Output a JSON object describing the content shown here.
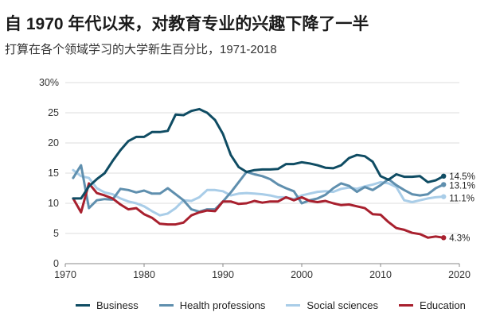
{
  "title": "自 1970 年代以来，对教育专业的兴趣下降了一半",
  "subtitle": "打算在各个领域学习的大学新生百分比，1971-2018",
  "colors": {
    "business": "#0f4c63",
    "health": "#5f8fae",
    "social": "#a9cde8",
    "education": "#a8202e",
    "grid": "#dcdcdc"
  },
  "chart_data": {
    "type": "line",
    "title": "自 1970 年代以来，对教育专业的兴趣下降了一半",
    "subtitle": "打算在各个领域学习的大学新生百分比，1971-2018",
    "xlim": [
      1970,
      2020
    ],
    "ylim": [
      0,
      30
    ],
    "xticks": [
      "1970",
      "1980",
      "1990",
      "2000",
      "2010",
      "2020"
    ],
    "yticks": [
      "0",
      "5",
      "10",
      "15",
      "20",
      "25",
      "30%"
    ],
    "grid": "horizontal",
    "legend_position": "bottom",
    "x": [
      1971,
      1972,
      1973,
      1974,
      1975,
      1976,
      1977,
      1978,
      1979,
      1980,
      1981,
      1982,
      1983,
      1984,
      1985,
      1986,
      1987,
      1988,
      1989,
      1990,
      1991,
      1992,
      1993,
      1994,
      1995,
      1996,
      1997,
      1998,
      1999,
      2000,
      2001,
      2002,
      2003,
      2004,
      2005,
      2006,
      2007,
      2008,
      2009,
      2010,
      2011,
      2012,
      2013,
      2014,
      2015,
      2016,
      2017,
      2018
    ],
    "series": [
      {
        "name": "Business",
        "key": "business",
        "end_label": "14.5%",
        "values": [
          10.8,
          10.8,
          12.8,
          14.0,
          15.0,
          17.0,
          18.8,
          20.3,
          21.0,
          21.0,
          21.8,
          21.8,
          22.0,
          24.7,
          24.6,
          25.3,
          25.6,
          25.0,
          23.8,
          21.5,
          18.0,
          16.0,
          15.2,
          15.5,
          15.6,
          15.6,
          15.7,
          16.5,
          16.5,
          16.8,
          16.6,
          16.3,
          15.9,
          15.8,
          16.3,
          17.5,
          18.0,
          17.8,
          16.9,
          14.5,
          13.9,
          14.8,
          14.4,
          14.4,
          14.5,
          13.5,
          13.8,
          14.5
        ]
      },
      {
        "name": "Health professions",
        "key": "health",
        "end_label": "13.1%",
        "values": [
          14.2,
          16.3,
          9.2,
          10.5,
          10.7,
          10.6,
          12.4,
          12.2,
          11.8,
          12.1,
          11.6,
          11.6,
          12.5,
          11.5,
          10.5,
          9.0,
          8.6,
          9.0,
          9.0,
          10.3,
          11.8,
          13.5,
          15.2,
          14.8,
          14.5,
          14.0,
          13.1,
          12.5,
          12.0,
          10.0,
          10.5,
          10.8,
          11.4,
          12.5,
          13.3,
          12.9,
          11.9,
          12.7,
          12.2,
          13.0,
          14.0,
          13.0,
          12.2,
          11.5,
          11.3,
          11.5,
          12.5,
          13.1
        ]
      },
      {
        "name": "Social sciences",
        "key": "social",
        "end_label": "11.1%",
        "values": [
          15.5,
          14.5,
          14.2,
          12.5,
          11.8,
          11.5,
          10.8,
          10.3,
          10.0,
          9.5,
          8.7,
          8.0,
          8.3,
          9.2,
          10.5,
          10.4,
          11.0,
          12.2,
          12.2,
          12.0,
          11.3,
          11.6,
          11.7,
          11.6,
          11.5,
          11.3,
          11.0,
          11.0,
          10.7,
          11.3,
          11.6,
          11.9,
          12.0,
          11.9,
          12.4,
          12.6,
          12.4,
          12.8,
          13.1,
          13.5,
          13.3,
          12.7,
          10.5,
          10.2,
          10.5,
          10.8,
          11.0,
          11.1
        ]
      },
      {
        "name": "Education",
        "key": "education",
        "end_label": "4.3%",
        "values": [
          10.8,
          8.5,
          13.3,
          11.7,
          11.3,
          10.8,
          9.8,
          9.0,
          9.2,
          8.2,
          7.6,
          6.6,
          6.5,
          6.5,
          6.8,
          8.0,
          8.5,
          8.8,
          8.7,
          10.3,
          10.3,
          9.9,
          10.0,
          10.4,
          10.1,
          10.3,
          10.3,
          11.0,
          10.5,
          11.0,
          10.4,
          10.2,
          10.4,
          10.0,
          9.7,
          9.8,
          9.5,
          9.2,
          8.2,
          8.1,
          6.9,
          5.9,
          5.6,
          5.1,
          4.9,
          4.3,
          4.5,
          4.3
        ]
      }
    ]
  }
}
